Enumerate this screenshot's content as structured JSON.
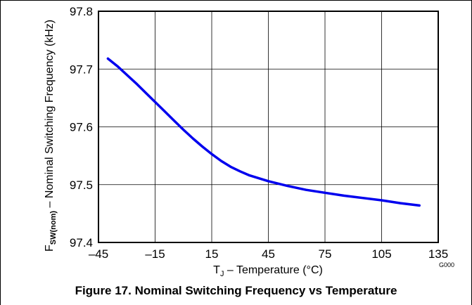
{
  "chart_data": {
    "type": "line",
    "xlabel_main": "T",
    "xlabel_sub": "J",
    "xlabel_rest": " – Temperature (°C)",
    "ylabel_main": "F",
    "ylabel_sub": "SW(nom)",
    "ylabel_rest": " – Nominal Switching Frequency (kHz)",
    "xlim": [
      -45,
      135
    ],
    "ylim": [
      97.4,
      97.8
    ],
    "x_ticks": [
      -45,
      -15,
      15,
      45,
      75,
      105,
      135
    ],
    "x_tick_labels": [
      "–45",
      "–15",
      "15",
      "45",
      "75",
      "105",
      "135"
    ],
    "y_ticks": [
      97.4,
      97.5,
      97.6,
      97.7,
      97.8
    ],
    "y_tick_labels": [
      "97.4",
      "97.5",
      "97.6",
      "97.7",
      "97.8"
    ],
    "grid": true,
    "series": [
      {
        "color": "#0000ee",
        "x": [
          -40,
          -35,
          -30,
          -25,
          -20,
          -15,
          -10,
          -5,
          0,
          5,
          10,
          15,
          20,
          25,
          30,
          35,
          40,
          45,
          55,
          65,
          75,
          85,
          95,
          105,
          115,
          125
        ],
        "y": [
          97.718,
          97.705,
          97.69,
          97.675,
          97.659,
          97.643,
          97.627,
          97.611,
          97.595,
          97.58,
          97.566,
          97.553,
          97.541,
          97.531,
          97.523,
          97.516,
          97.511,
          97.506,
          97.498,
          97.491,
          97.486,
          97.481,
          97.477,
          97.473,
          97.468,
          97.464
        ]
      }
    ]
  },
  "figure_code": "G000",
  "caption": "Figure 17. Nominal Switching Frequency vs Temperature"
}
